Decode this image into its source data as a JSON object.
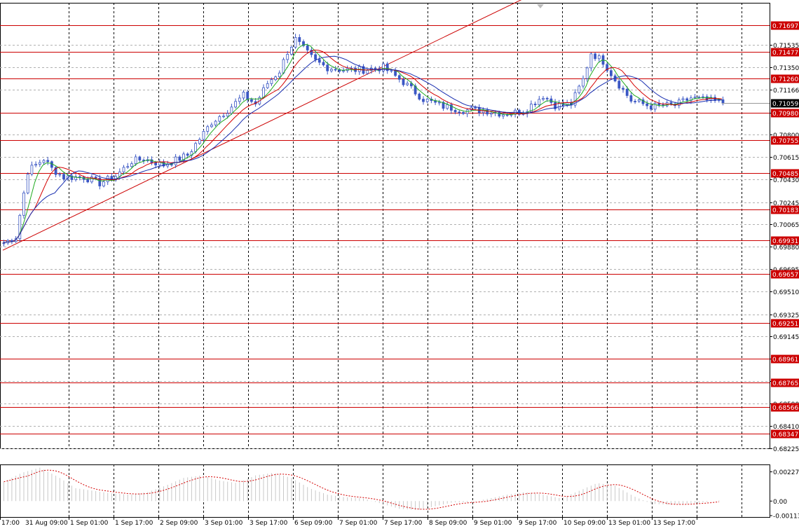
{
  "chart_data": {
    "type": "line",
    "subtype": "candlestick with moving averages",
    "price_axis": {
      "ylim": [
        0.68225,
        0.7188
      ],
      "tick_labels": [
        "0.71535",
        "0.71350",
        "0.71166",
        "0.70980",
        "0.70800",
        "0.70615",
        "0.70430",
        "0.70245",
        "0.70065",
        "0.69880",
        "0.69695",
        "0.69510",
        "0.69325",
        "0.69145",
        "0.68960",
        "0.68775",
        "0.68590",
        "0.68410",
        "0.68225"
      ]
    },
    "time_axis": {
      "labels": [
        "17:00",
        "31 Aug 09:00",
        "1 Sep 01:00",
        "1 Sep 17:00",
        "2 Sep 09:00",
        "3 Sep 01:00",
        "3 Sep 17:00",
        "6 Sep 09:00",
        "7 Sep 01:00",
        "7 Sep 17:00",
        "8 Sep 09:00",
        "9 Sep 01:00",
        "9 Sep 17:00",
        "10 Sep 09:00",
        "13 Sep 01:00",
        "13 Sep 17:00"
      ]
    },
    "horizontal_levels": [
      0.71697,
      0.71477,
      0.7126,
      0.7098,
      0.70755,
      0.70485,
      0.70183,
      0.69931,
      0.69657,
      0.69251,
      0.68961,
      0.68765,
      0.68566,
      0.68347
    ],
    "current_price": 0.71059,
    "trendline": {
      "from": [
        0,
        0.6985
      ],
      "to": [
        132,
        0.7194
      ]
    },
    "price_path": [
      [
        0,
        0.6991
      ],
      [
        3,
        0.6996
      ],
      [
        6,
        0.705
      ],
      [
        8,
        0.7055
      ],
      [
        10,
        0.706
      ],
      [
        12,
        0.7052
      ],
      [
        15,
        0.7045
      ],
      [
        20,
        0.7045
      ],
      [
        24,
        0.704
      ],
      [
        28,
        0.7046
      ],
      [
        32,
        0.7058
      ],
      [
        35,
        0.706
      ],
      [
        40,
        0.7055
      ],
      [
        46,
        0.7063
      ],
      [
        52,
        0.709
      ],
      [
        56,
        0.71
      ],
      [
        60,
        0.7112
      ],
      [
        63,
        0.7105
      ],
      [
        66,
        0.7122
      ],
      [
        69,
        0.7132
      ],
      [
        71,
        0.7148
      ],
      [
        73,
        0.7158
      ],
      [
        75,
        0.715
      ],
      [
        78,
        0.714
      ],
      [
        81,
        0.7135
      ],
      [
        85,
        0.7133
      ],
      [
        90,
        0.7133
      ],
      [
        95,
        0.7135
      ],
      [
        100,
        0.7123
      ],
      [
        105,
        0.7109
      ],
      [
        110,
        0.7103
      ],
      [
        115,
        0.71
      ],
      [
        120,
        0.71
      ],
      [
        125,
        0.7097
      ],
      [
        130,
        0.7099
      ],
      [
        135,
        0.7112
      ],
      [
        138,
        0.7104
      ],
      [
        142,
        0.7105
      ],
      [
        145,
        0.7125
      ],
      [
        147,
        0.7147
      ],
      [
        150,
        0.714
      ],
      [
        153,
        0.7125
      ],
      [
        157,
        0.7108
      ],
      [
        162,
        0.7103
      ],
      [
        168,
        0.7104
      ],
      [
        172,
        0.711
      ],
      [
        176,
        0.7108
      ],
      [
        180,
        0.7106
      ]
    ],
    "indicator": {
      "ylim": [
        -0.00113,
        0.00274
      ],
      "tick_labels": [
        "0.002274",
        "0.00",
        "-0.00113"
      ],
      "values": [
        0.0015,
        0.0022,
        0.0026,
        0.0019,
        0.001,
        0.0008,
        0.0006,
        0.0005,
        0.0007,
        0.0012,
        0.0018,
        0.002,
        0.0016,
        0.0014,
        0.002,
        0.0022,
        0.0018,
        0.001,
        0.0005,
        0.0003,
        0.0002,
        -0.0002,
        -0.0006,
        -0.0007,
        -0.0004,
        -0.0001,
        -0.0001,
        0.0002,
        0.0005,
        0.0007,
        0.0005,
        0.0002,
        0.0008,
        0.0014,
        0.0012,
        0.0004,
        -0.0002,
        -0.0003,
        -0.0002,
        -0.0001,
        0.0001
      ]
    }
  },
  "colors": {
    "candle": "#3b57c4",
    "ma_fast": "#1faa1f",
    "ma_mid": "#d40000",
    "ma_slow": "#1a2fb0",
    "level": "#cc0000",
    "grid": "#b0b0b0",
    "current_bg": "#000000",
    "level_label_bg": "#cc0000"
  }
}
